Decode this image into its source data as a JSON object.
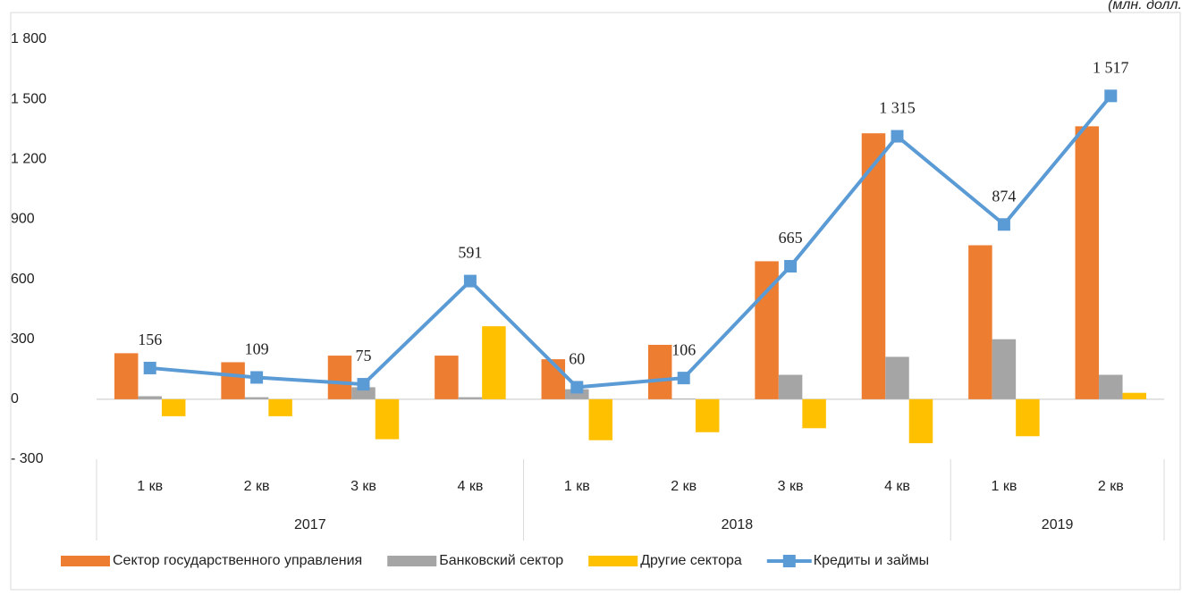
{
  "chart_data": {
    "type": "bar_line",
    "unit_note": "(млн. долл.",
    "groups": [
      {
        "name": "2017",
        "categories": [
          "1 кв",
          "2 кв",
          "3 кв",
          "4 кв"
        ]
      },
      {
        "name": "2018",
        "categories": [
          "1 кв",
          "2 кв",
          "3 кв",
          "4 кв"
        ]
      },
      {
        "name": "2019",
        "categories": [
          "1 кв",
          "2 кв"
        ]
      }
    ],
    "series": [
      {
        "name": "Сектор государственного управления",
        "kind": "bar",
        "color": "#ed7d31",
        "values": [
          230,
          185,
          218,
          218,
          200,
          272,
          690,
          1330,
          770,
          1365
        ]
      },
      {
        "name": "Банковский сектор",
        "kind": "bar",
        "color": "#a5a5a5",
        "values": [
          15,
          10,
          60,
          10,
          50,
          3,
          122,
          212,
          300,
          122
        ]
      },
      {
        "name": "Другие сектора",
        "kind": "bar",
        "color": "#ffc000",
        "values": [
          -85,
          -85,
          -200,
          365,
          -205,
          -165,
          -145,
          -220,
          -185,
          32
        ]
      },
      {
        "name": "Кредиты и займы",
        "kind": "line",
        "color": "#5b9bd5",
        "values": [
          156,
          109,
          75,
          591,
          60,
          106,
          665,
          1315,
          874,
          1517
        ],
        "value_labels": [
          "156",
          "109",
          "75",
          "591",
          "60",
          "106",
          "665",
          "1 315",
          "874",
          "1 517"
        ]
      }
    ],
    "ylim": [
      -300,
      1800
    ],
    "yticks": [
      {
        "value": -300,
        "label": "- 300"
      },
      0,
      300,
      600,
      900,
      {
        "value": 1200,
        "label": "1 200"
      },
      {
        "value": 1500,
        "label": "1 500"
      },
      {
        "value": 1800,
        "label": "1 800"
      }
    ],
    "legend": "bottom"
  }
}
